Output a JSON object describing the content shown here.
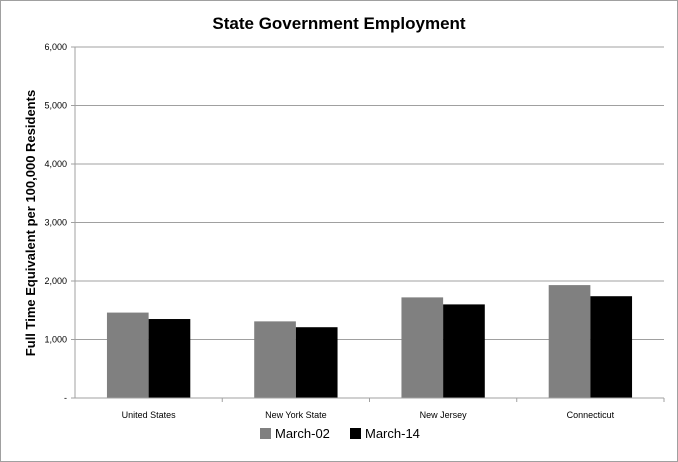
{
  "chart_data": {
    "type": "bar",
    "title": "State Government Employment",
    "xlabel": "",
    "ylabel": "Full Time Equivalent per 100,000 Residents",
    "categories": [
      "United States",
      "New York State",
      "New Jersey",
      "Connecticut"
    ],
    "series": [
      {
        "name": "March-02",
        "values": [
          1460,
          1310,
          1720,
          1930
        ],
        "color": "#808080"
      },
      {
        "name": "March-14",
        "values": [
          1350,
          1210,
          1600,
          1740
        ],
        "color": "#000000"
      }
    ],
    "ylim": [
      0,
      6000
    ],
    "yticks": [
      0,
      1000,
      2000,
      3000,
      4000,
      5000,
      6000
    ],
    "ytick_labels": [
      "-",
      "1,000",
      "2,000",
      "3,000",
      "4,000",
      "5,000",
      "6,000"
    ],
    "grid": true,
    "legend": "bottom",
    "axis_color": "#a0a0a0"
  }
}
